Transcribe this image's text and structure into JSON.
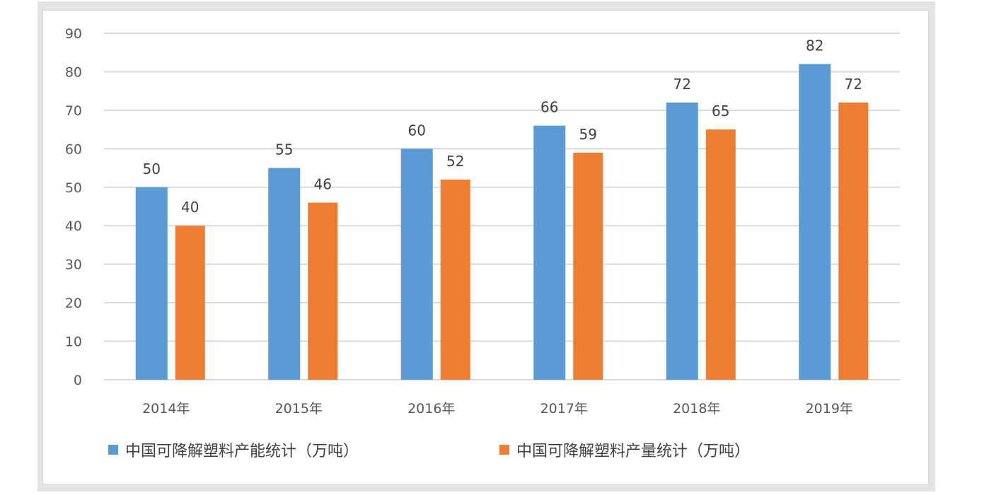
{
  "chart_data": {
    "type": "bar",
    "categories": [
      "2014年",
      "2015年",
      "2016年",
      "2017年",
      "2018年",
      "2019年"
    ],
    "series": [
      {
        "name": "中国可降解塑料产能统计（万吨）",
        "values": [
          50,
          55,
          60,
          66,
          72,
          82
        ],
        "color": "#5b9bd5"
      },
      {
        "name": "中国可降解塑料产量统计（万吨）",
        "values": [
          40,
          46,
          52,
          59,
          65,
          72
        ],
        "color": "#ed7d31"
      }
    ],
    "ylim": [
      0,
      90
    ],
    "yticks": [
      0,
      10,
      20,
      30,
      40,
      50,
      60,
      70,
      80,
      90
    ],
    "grid": true,
    "data_labels": true,
    "legend": "bottom"
  }
}
